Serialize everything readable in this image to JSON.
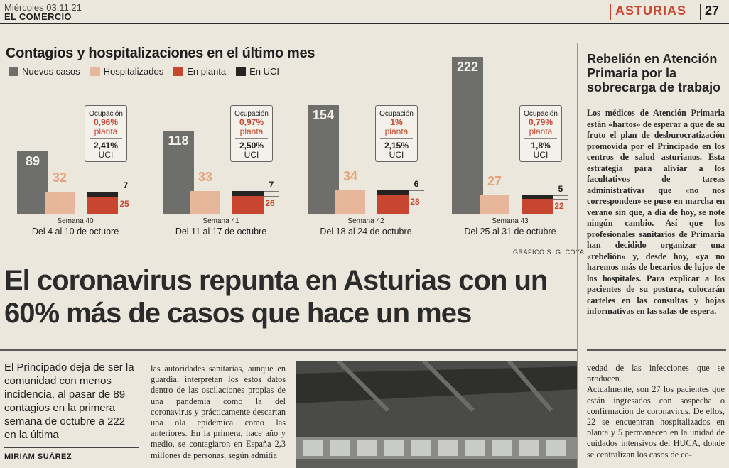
{
  "header": {
    "date": "Miércoles 03.11.21",
    "paper": "EL COMERCIO",
    "section": "ASTURIAS",
    "page": "27"
  },
  "chart": {
    "title": "Contagios y hospitalizaciones en el último mes",
    "legend": [
      "Nuevos casos",
      "Hospitalizados",
      "En planta",
      "En UCI"
    ],
    "colors": {
      "casos": "#6e6f6b",
      "hosp": "#e6b79a",
      "planta": "#c8452f",
      "uci": "#262422"
    },
    "credit": "GRÁFICO S. G. COYA",
    "occ_label": "Ocupación"
  },
  "chart_data": {
    "type": "bar",
    "categories": [
      "Semana 40",
      "Semana 41",
      "Semana 42",
      "Semana 43"
    ],
    "ranges": [
      "Del 4 al 10 de octubre",
      "Del 11 al 17 de octubre",
      "Del 18 al 24 de octubre",
      "Del 25 al 31 de octubre"
    ],
    "series": [
      {
        "name": "Nuevos casos",
        "values": [
          89,
          118,
          154,
          222
        ]
      },
      {
        "name": "Hospitalizados",
        "values": [
          32,
          33,
          34,
          27
        ]
      },
      {
        "name": "En planta",
        "values": [
          25,
          26,
          28,
          22
        ]
      },
      {
        "name": "En UCI",
        "values": [
          7,
          7,
          6,
          5
        ]
      }
    ],
    "ocupacion_planta": [
      "0,96%",
      "0,97%",
      "1%",
      "0,79%"
    ],
    "ocupacion_uci": [
      "2,41%",
      "2,50%",
      "2,15%",
      "1,8%"
    ],
    "planta_label": "planta",
    "uci_label": "UCI"
  },
  "headline": "El coronavirus repunta en Asturias con un 60% más de casos que hace un mes",
  "lead": "El Principado deja de ser la comunidad con menos incidencia, al pasar de 89 contagios en la primera semana de octubre a 222 en la última",
  "author": "MIRIAM SUÁREZ",
  "col2": "las autoridades sanitarias, aunque en guardia, interpretan los estos datos dentro de las oscilaciones propias de una pandemia como la del coronavirus y prácticamente descartan una ola epidémica como las anteriores. En la primera, hace año y medio, se contagiaron en España 2,3 millones de personas, según admitía",
  "col4": "vedad de las infecciones que se producen.\n    Actualmente, son 27 los pacientes que están ingresados con sospecha o confirmación de coronavirus. De ellos, 22 se encuentran hospitalizados en planta y 5 permanecen en la unidad de cuidados intensivos del HUCA, donde se centralizan los casos de co-",
  "sidebar": {
    "title": "Rebelión en Atención Primaria por la sobrecarga de trabajo",
    "text": "Los médicos de Atención Primaria están «hartos» de esperar a que de su fruto el plan de desburocratización promovida por el Principado en los centros de salud asturianos. Esta estrategia para aliviar a los facultativos de tareas administrativas que «no nos corresponden» se puso en marcha en verano sin que, a día de hoy, se note ningún cambio. Así que los profesionales sanitarios de Primaria han decidido organizar una «rebelión» y, desde hoy, «ya no haremos más de becarios de lujo» de los hospitales. Para explicar a los pacientes de su postura, colocarán carteles en las consultas y hojas informativas en las salas de espera."
  }
}
